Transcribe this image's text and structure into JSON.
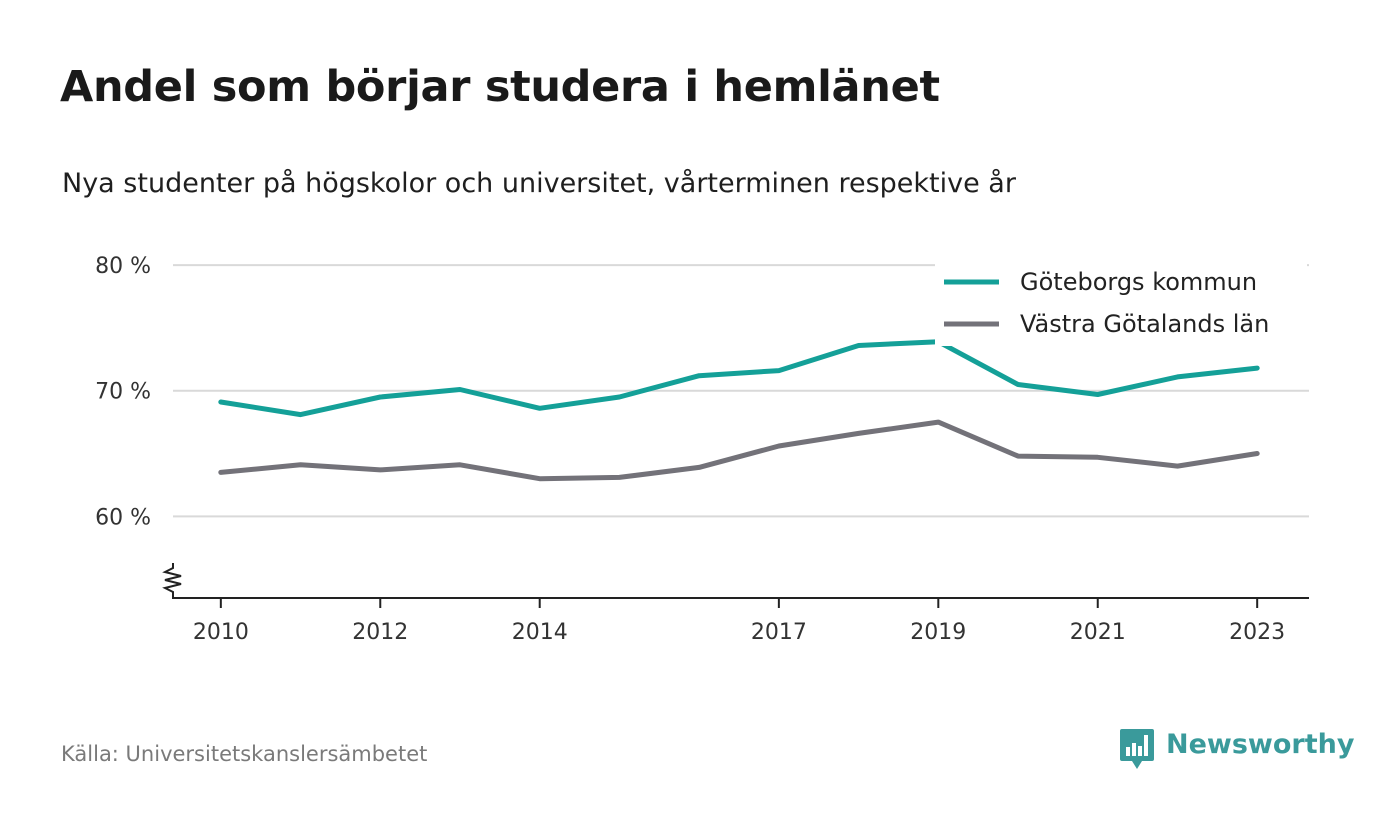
{
  "title": "Andel som börjar studera i hemlänet",
  "subtitle": "Nya studenter på högskolor och universitet, vårterminen respektive år",
  "source": "Källa: Universitetskanslersämbetet",
  "brand": {
    "name": "Newsworthy",
    "icon": "newsworthy-logo-icon",
    "color": "#3a9a9b"
  },
  "chart_data": {
    "type": "line",
    "title": "Andel som börjar studera i hemlänet",
    "subtitle": "Nya studenter på högskolor och universitet, vårterminen respektive år",
    "x": [
      2010,
      2011,
      2012,
      2013,
      2014,
      2015,
      2016,
      2017,
      2018,
      2019,
      2020,
      2021,
      2022,
      2023
    ],
    "x_tick_labels": [
      "2010",
      "2012",
      "2014",
      "2017",
      "2019",
      "2021",
      "2023"
    ],
    "x_ticks": [
      2010,
      2012,
      2014,
      2017,
      2019,
      2021,
      2023
    ],
    "y_ticks": [
      60,
      70,
      80
    ],
    "y_tick_labels": [
      "60 %",
      "70 %",
      "80 %"
    ],
    "ylim": [
      53.5,
      82
    ],
    "xlim": [
      2009.4,
      2023.65
    ],
    "y_axis_break": true,
    "grid": true,
    "legend_position": "top-right",
    "series": [
      {
        "name": "Göteborgs kommun",
        "color": "#14a098",
        "values": [
          69.1,
          68.1,
          69.5,
          70.1,
          68.6,
          69.5,
          71.2,
          71.6,
          73.6,
          73.9,
          70.5,
          69.7,
          71.1,
          71.8
        ]
      },
      {
        "name": "Västra Götalands län",
        "color": "#737279",
        "values": [
          63.5,
          64.1,
          63.7,
          64.1,
          63.0,
          63.1,
          63.9,
          65.6,
          66.6,
          67.5,
          64.8,
          64.7,
          64.0,
          65.0
        ]
      }
    ]
  }
}
